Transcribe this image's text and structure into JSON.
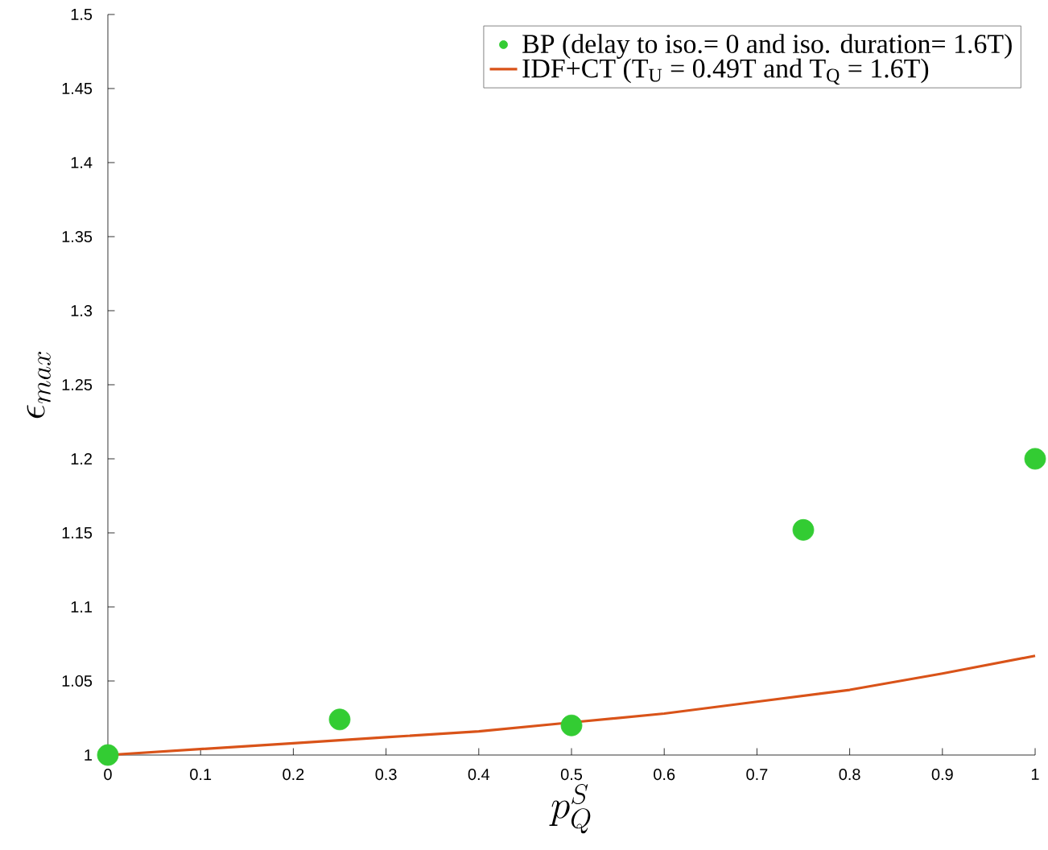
{
  "chart_data": {
    "type": "scatter",
    "xlabel": "p_Q^S",
    "ylabel": "\\epsilon_{max}",
    "xlim": [
      0,
      1
    ],
    "ylim": [
      1,
      1.5
    ],
    "xticks": [
      0,
      0.1,
      0.2,
      0.3,
      0.4,
      0.5,
      0.6,
      0.7,
      0.8,
      0.9,
      1
    ],
    "yticks": [
      1,
      1.05,
      1.1,
      1.15,
      1.2,
      1.25,
      1.3,
      1.35,
      1.4,
      1.45,
      1.5
    ],
    "grid": false,
    "legend": "top right",
    "series": [
      {
        "name": "BP (delay to iso.= 0 and iso. duration= 1.6T)",
        "marker": "circle",
        "color": "#33cc33",
        "x": [
          0,
          0.25,
          0.5,
          0.75,
          1
        ],
        "values": [
          1,
          1.024,
          1.02,
          1.152,
          1.2
        ]
      },
      {
        "name": "IDF+CT (T$_{U}$ = 0.49T and T$_{Q}$ = 1.6T)",
        "type": "line",
        "marker": "none",
        "line_style": "solid",
        "color": "#d95319",
        "x": [
          0,
          0.1,
          0.2,
          0.3,
          0.4,
          0.5,
          0.6,
          0.7,
          0.8,
          0.9,
          1
        ],
        "values": [
          1,
          1.004,
          1.008,
          1.012,
          1.016,
          1.022,
          1.028,
          1.036,
          1.044,
          1.055,
          1.067
        ]
      }
    ]
  }
}
